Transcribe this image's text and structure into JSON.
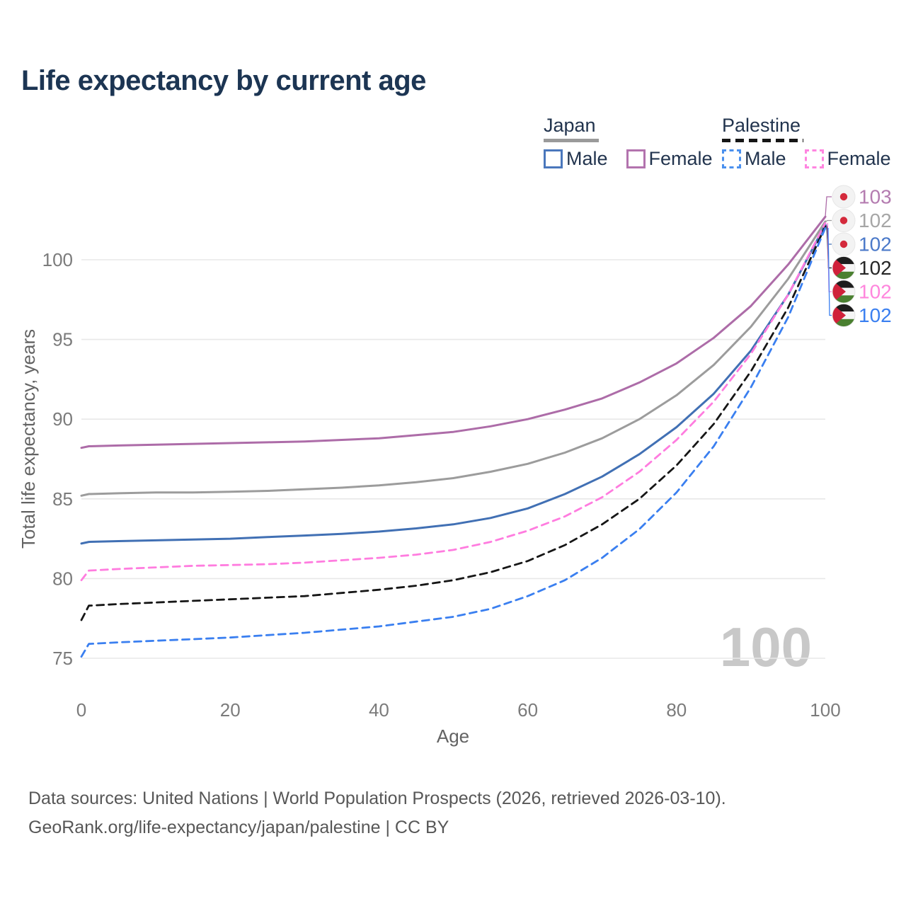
{
  "title": "Life expectancy by current age",
  "legend": {
    "groups": [
      {
        "label": "Japan",
        "line_style": "solid",
        "underline_color": "#9a9a9a",
        "items": [
          {
            "label": "Male",
            "color": "#4a77bc",
            "dashed": false
          },
          {
            "label": "Female",
            "color": "#b373ae",
            "dashed": false
          }
        ]
      },
      {
        "label": "Palestine",
        "line_style": "dashed",
        "underline_color": "#161616",
        "items": [
          {
            "label": "Male",
            "color": "#4a90ee",
            "dashed": true
          },
          {
            "label": "Female",
            "color": "#ff85e0",
            "dashed": true
          }
        ]
      }
    ]
  },
  "chart_data": {
    "type": "line",
    "title": "Life expectancy by current age",
    "xlabel": "Age",
    "ylabel": "Total life expectancy, years",
    "watermark": "100",
    "xlim": [
      0,
      100
    ],
    "ylim": [
      75,
      100
    ],
    "xticks": [
      0,
      20,
      40,
      60,
      80,
      100
    ],
    "yticks": [
      75,
      80,
      85,
      90,
      95,
      100
    ],
    "grid": "horizontal",
    "legend_position": "top-right",
    "x": [
      0,
      1,
      5,
      10,
      15,
      20,
      25,
      30,
      35,
      40,
      45,
      50,
      55,
      60,
      65,
      70,
      75,
      80,
      85,
      90,
      95,
      100
    ],
    "series": [
      {
        "name": "Japan Female",
        "country": "Japan",
        "flag": "japan",
        "color": "#ad6ca8",
        "dashed": false,
        "end_label": "103",
        "label_color": "#b47cb0",
        "values": [
          88.2,
          88.3,
          88.35,
          88.4,
          88.45,
          88.5,
          88.55,
          88.6,
          88.7,
          88.8,
          89.0,
          89.2,
          89.55,
          90.0,
          90.6,
          91.3,
          92.3,
          93.5,
          95.1,
          97.1,
          99.7,
          102.7
        ]
      },
      {
        "name": "Japan Both sexes",
        "country": "Japan",
        "flag": "japan",
        "color": "#9c9c9c",
        "dashed": false,
        "end_label": "102",
        "label_color": "#a6a6a6",
        "values": [
          85.2,
          85.3,
          85.35,
          85.4,
          85.4,
          85.45,
          85.5,
          85.6,
          85.7,
          85.85,
          86.05,
          86.3,
          86.7,
          87.2,
          87.9,
          88.8,
          90.0,
          91.5,
          93.4,
          95.8,
          98.8,
          102.4
        ]
      },
      {
        "name": "Japan Male",
        "country": "Japan",
        "flag": "japan",
        "color": "#4170b4",
        "dashed": false,
        "end_label": "102",
        "label_color": "#4b79c9",
        "values": [
          82.2,
          82.3,
          82.35,
          82.4,
          82.45,
          82.5,
          82.6,
          82.7,
          82.8,
          82.95,
          83.15,
          83.4,
          83.8,
          84.4,
          85.3,
          86.4,
          87.8,
          89.5,
          91.6,
          94.3,
          97.8,
          102.2
        ]
      },
      {
        "name": "Palestine Both sexes",
        "country": "Palestine",
        "flag": "palestine",
        "color": "#161616",
        "dashed": true,
        "end_label": "102",
        "label_color": "#262626",
        "values": [
          77.4,
          78.3,
          78.4,
          78.5,
          78.6,
          78.7,
          78.8,
          78.9,
          79.1,
          79.3,
          79.55,
          79.9,
          80.4,
          81.1,
          82.1,
          83.4,
          85.0,
          87.1,
          89.7,
          93.0,
          97.0,
          102.1
        ]
      },
      {
        "name": "Palestine Female",
        "country": "Palestine",
        "flag": "palestine",
        "color": "#ff7cdf",
        "dashed": true,
        "end_label": "102",
        "label_color": "#ff86dd",
        "values": [
          79.9,
          80.5,
          80.6,
          80.7,
          80.8,
          80.85,
          80.9,
          81.0,
          81.15,
          81.3,
          81.5,
          81.8,
          82.3,
          83.0,
          83.9,
          85.1,
          86.7,
          88.7,
          91.1,
          94.1,
          97.8,
          102.3
        ]
      },
      {
        "name": "Palestine Male",
        "country": "Palestine",
        "flag": "palestine",
        "color": "#3a7ff0",
        "dashed": true,
        "end_label": "102",
        "label_color": "#3a7ff0",
        "values": [
          75.1,
          75.9,
          76.0,
          76.1,
          76.2,
          76.3,
          76.45,
          76.6,
          76.8,
          77.0,
          77.3,
          77.6,
          78.1,
          78.9,
          79.9,
          81.3,
          83.1,
          85.4,
          88.3,
          92.0,
          96.4,
          102.0
        ]
      }
    ]
  },
  "footer": {
    "line1": "Data sources: United Nations | World Population Prospects (2026, retrieved 2026-03-10).",
    "line2": "GeoRank.org/life-expectancy/japan/palestine | CC BY"
  }
}
